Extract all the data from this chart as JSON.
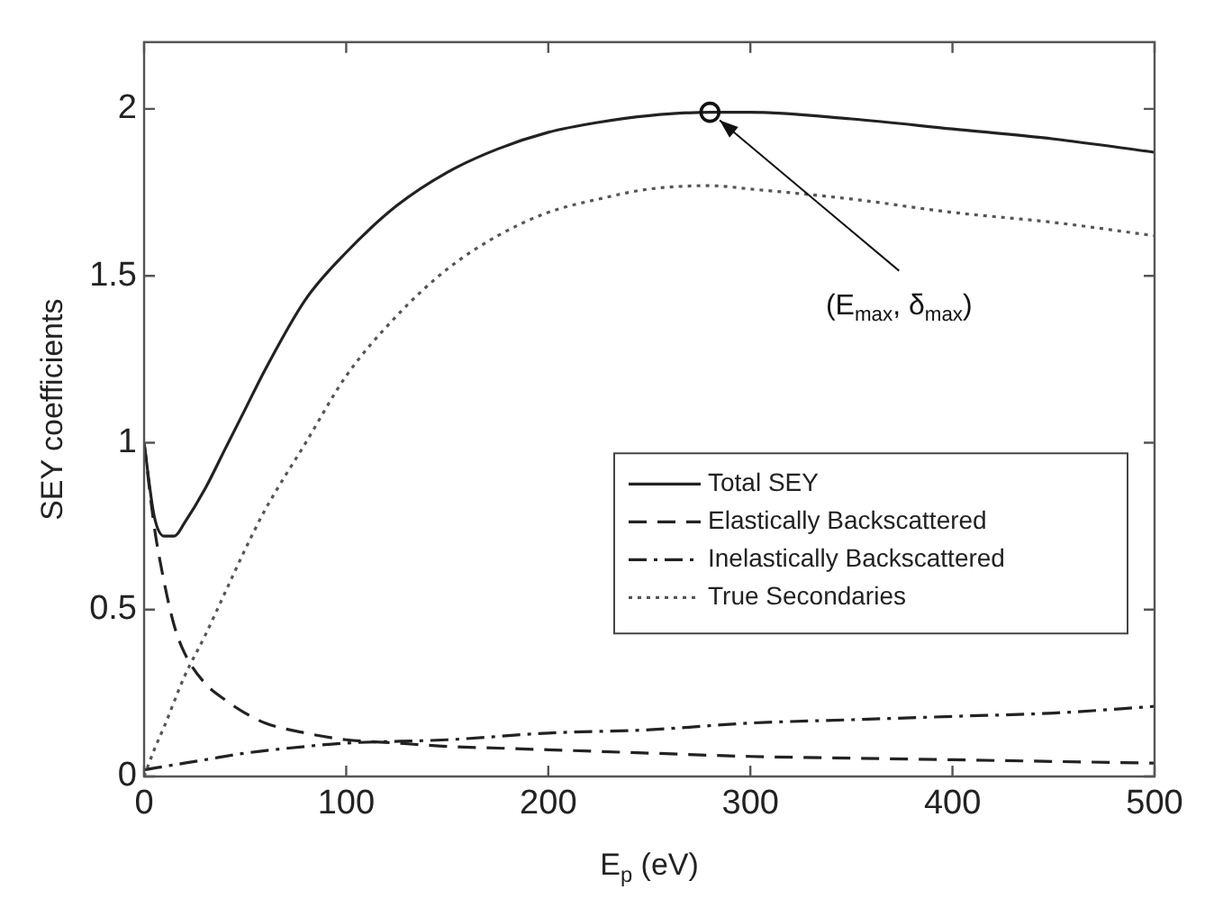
{
  "chart_data": {
    "type": "line",
    "xlabel": "E$_{p}$ (eV)",
    "ylabel": "SEY coefficients",
    "xlim": [
      0,
      500
    ],
    "xticks": [
      0,
      100,
      200,
      300,
      400,
      500
    ],
    "ylim": [
      0,
      2.2
    ],
    "yticks": [
      0,
      0.5,
      1,
      1.5,
      2
    ],
    "grid": false,
    "legend": "right",
    "marker": "none",
    "series": [
      {
        "name": "Total SEY",
        "color": "#222222",
        "line_style": "solid",
        "x": [
          0,
          5,
          10,
          15,
          20,
          30,
          40,
          50,
          60,
          80,
          100,
          125,
          150,
          175,
          200,
          225,
          250,
          280,
          300,
          350,
          400,
          450,
          500
        ],
        "values": [
          1.0,
          0.78,
          0.72,
          0.72,
          0.76,
          0.86,
          0.98,
          1.1,
          1.22,
          1.43,
          1.57,
          1.71,
          1.81,
          1.88,
          1.93,
          1.96,
          1.98,
          1.99,
          1.99,
          1.97,
          1.94,
          1.91,
          1.87
        ]
      },
      {
        "name": "Elastically Backscattered",
        "color": "#222222",
        "line_style": "dashed",
        "x": [
          0,
          5,
          10,
          15,
          20,
          30,
          40,
          50,
          60,
          80,
          100,
          125,
          150,
          175,
          200,
          250,
          300,
          350,
          400,
          450,
          500
        ],
        "values": [
          1.0,
          0.75,
          0.58,
          0.45,
          0.37,
          0.28,
          0.23,
          0.19,
          0.16,
          0.13,
          0.11,
          0.1,
          0.09,
          0.085,
          0.08,
          0.07,
          0.06,
          0.055,
          0.05,
          0.045,
          0.04
        ]
      },
      {
        "name": "Inelastically Backscattered",
        "color": "#222222",
        "line_style": "dashdot",
        "x": [
          0,
          10,
          20,
          30,
          50,
          80,
          100,
          150,
          200,
          250,
          300,
          350,
          400,
          450,
          500
        ],
        "values": [
          0.02,
          0.03,
          0.04,
          0.05,
          0.07,
          0.09,
          0.1,
          0.11,
          0.13,
          0.14,
          0.16,
          0.17,
          0.18,
          0.19,
          0.21
        ]
      },
      {
        "name": "True Secondaries",
        "color": "#555555",
        "line_style": "dotted",
        "x": [
          0,
          5,
          10,
          20,
          30,
          40,
          50,
          60,
          80,
          100,
          125,
          150,
          175,
          200,
          225,
          250,
          280,
          300,
          350,
          400,
          450,
          500
        ],
        "values": [
          0.0,
          0.08,
          0.15,
          0.3,
          0.42,
          0.55,
          0.68,
          0.8,
          1.0,
          1.2,
          1.38,
          1.52,
          1.62,
          1.69,
          1.73,
          1.76,
          1.77,
          1.76,
          1.73,
          1.69,
          1.66,
          1.62
        ]
      }
    ],
    "annotations": [
      {
        "text": "(E$_{max}$, δ$_{max}$)",
        "x": 280,
        "y": 1.99
      }
    ]
  }
}
